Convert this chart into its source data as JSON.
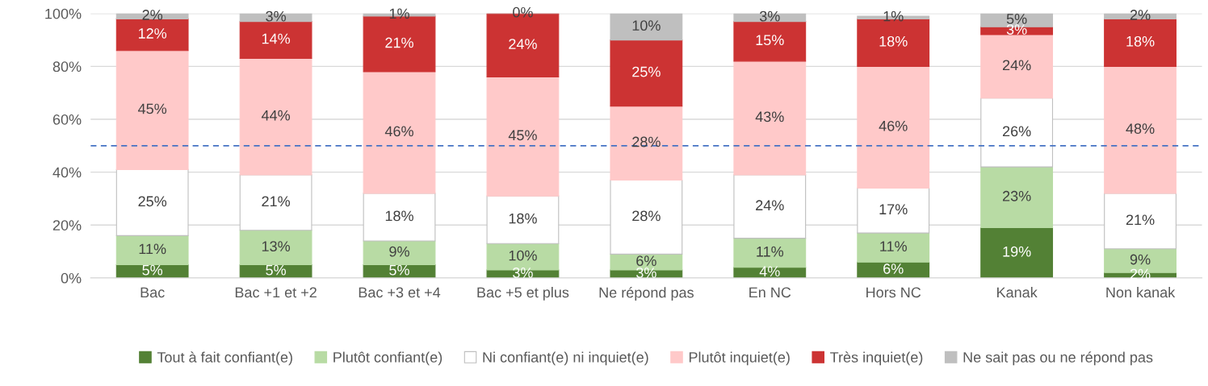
{
  "chart_data": {
    "type": "bar",
    "stacked": true,
    "grid": "y",
    "legend": "bottom",
    "categories": [
      "Bac",
      "Bac +1 et +2",
      "Bac +3 et +4",
      "Bac +5 et plus",
      "Ne répond pas",
      "En NC",
      "Hors NC",
      "Kanak",
      "Non kanak"
    ],
    "ylim": [
      0,
      100
    ],
    "yticks": [
      {
        "value": 0,
        "label": "0%"
      },
      {
        "value": 20,
        "label": "20%"
      },
      {
        "value": 40,
        "label": "40%"
      },
      {
        "value": 60,
        "label": "60%"
      },
      {
        "value": 80,
        "label": "80%"
      },
      {
        "value": 100,
        "label": "100%"
      }
    ],
    "series": [
      {
        "name": "Tout à fait confiant(e)",
        "color": "#538135",
        "values": [
          5,
          5,
          5,
          3,
          3,
          4,
          6,
          19,
          2
        ],
        "value_labels": [
          "5%",
          "5%",
          "5%",
          "3%",
          "3%",
          "4%",
          "6%",
          "19%",
          "2%"
        ]
      },
      {
        "name": "Plutôt confiant(e)",
        "color": "#b8dba4",
        "values": [
          11,
          13,
          9,
          10,
          6,
          11,
          11,
          23,
          9
        ],
        "value_labels": [
          "11%",
          "13%",
          "9%",
          "10%",
          "6%",
          "11%",
          "11%",
          "23%",
          "9%"
        ]
      },
      {
        "name": "Ni confiant(e) ni inquiet(e)",
        "color": "#ffffff",
        "values": [
          25,
          21,
          18,
          18,
          28,
          24,
          17,
          26,
          21
        ],
        "value_labels": [
          "25%",
          "21%",
          "18%",
          "18%",
          "28%",
          "24%",
          "17%",
          "26%",
          "21%"
        ]
      },
      {
        "name": "Plutôt inquiet(e)",
        "color": "#ffc9c9",
        "values": [
          45,
          44,
          46,
          45,
          28,
          43,
          46,
          24,
          48
        ],
        "value_labels": [
          "45%",
          "44%",
          "46%",
          "45%",
          "28%",
          "43%",
          "46%",
          "24%",
          "48%"
        ]
      },
      {
        "name": "Très inquiet(e)",
        "color": "#cc3333",
        "values": [
          12,
          14,
          21,
          24,
          25,
          15,
          18,
          3,
          18
        ],
        "value_labels": [
          "12%",
          "14%",
          "21%",
          "24%",
          "25%",
          "15%",
          "18%",
          "3%",
          "18%"
        ]
      },
      {
        "name": "Ne sait pas ou ne répond pas",
        "color": "#bfbfbf",
        "values": [
          2,
          3,
          1,
          0,
          10,
          3,
          1,
          5,
          2
        ],
        "value_labels": [
          "2%",
          "3%",
          "1%",
          "0%",
          "10%",
          "3%",
          "1%",
          "5%",
          "2%"
        ]
      }
    ],
    "ref_lines": [
      {
        "axis": "y",
        "value": 50,
        "color": "#4472c4",
        "line_style": "dashed"
      }
    ]
  }
}
